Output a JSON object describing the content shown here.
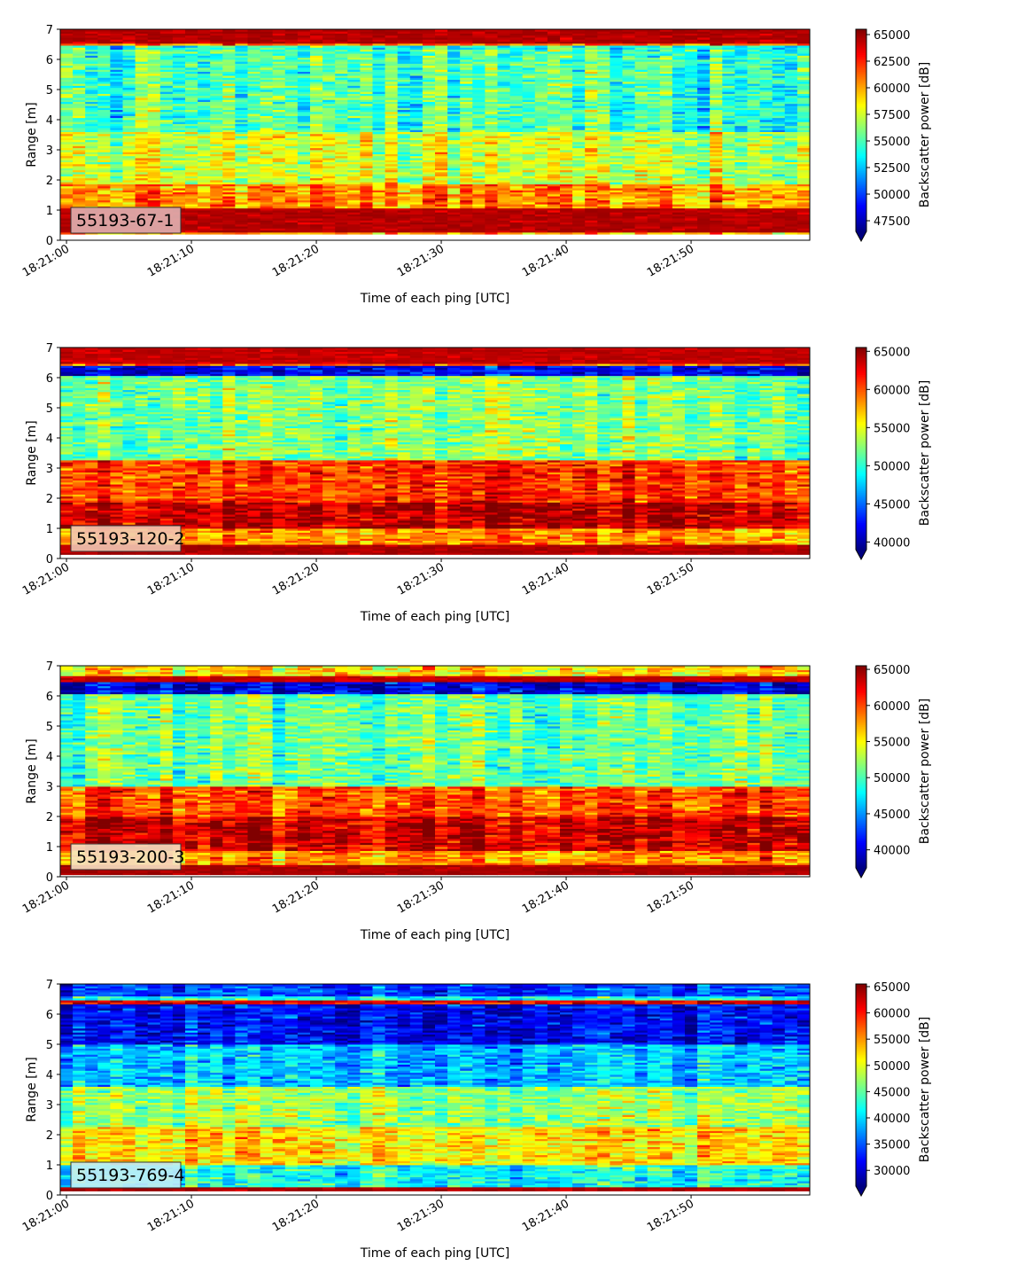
{
  "chart_data": [
    {
      "type": "heatmap",
      "title": "",
      "label_box": "55193-67-1",
      "xlabel": "Time of each ping [UTC]",
      "ylabel": "Range [m]",
      "x_ticks": [
        "18:21:00",
        "18:21:10",
        "18:21:20",
        "18:21:30",
        "18:21:40",
        "18:21:50"
      ],
      "x_range": [
        "18:20:59.5",
        "18:21:59.5"
      ],
      "y_ticks": [
        0,
        1,
        2,
        3,
        4,
        5,
        6,
        7
      ],
      "ylim": [
        0,
        7
      ],
      "colorbar": {
        "label": "Backscatter power [dB]",
        "colormap": "jet",
        "vmin": 46500,
        "vmax": 65500,
        "extend": "min",
        "ticks": [
          47500,
          50000,
          52500,
          55000,
          57500,
          60000,
          62500,
          65000
        ]
      },
      "label_box_color": "#e0b1b1",
      "bands": [
        {
          "from": 0,
          "to": 0.22,
          "value": null
        },
        {
          "from": 0.22,
          "to": 0.3,
          "value": 60000
        },
        {
          "from": 0.3,
          "to": 1.1,
          "value": 65000
        },
        {
          "from": 1.1,
          "to": 1.9,
          "value": 60500
        },
        {
          "from": 1.9,
          "to": 3.6,
          "value": 57500
        },
        {
          "from": 3.6,
          "to": 6.35,
          "value": 55000
        },
        {
          "from": 6.35,
          "to": 6.5,
          "value": 54000
        },
        {
          "from": 6.5,
          "to": 6.55,
          "value": 61000
        },
        {
          "from": 6.55,
          "to": 7.0,
          "value": 65000
        }
      ]
    },
    {
      "type": "heatmap",
      "title": "",
      "label_box": "55193-120-2",
      "xlabel": "Time of each ping [UTC]",
      "ylabel": "Range [m]",
      "x_ticks": [
        "18:21:00",
        "18:21:10",
        "18:21:20",
        "18:21:30",
        "18:21:40",
        "18:21:50"
      ],
      "x_range": [
        "18:20:59.5",
        "18:21:59.5"
      ],
      "y_ticks": [
        0,
        1,
        2,
        3,
        4,
        5,
        6,
        7
      ],
      "ylim": [
        0,
        7
      ],
      "colorbar": {
        "label": "Backscatter power [dB]",
        "colormap": "jet",
        "vmin": 39000,
        "vmax": 65500,
        "extend": "min",
        "ticks": [
          40000,
          45000,
          50000,
          55000,
          60000,
          65000
        ]
      },
      "label_box_color": "#f2c7b2",
      "bands": [
        {
          "from": 0,
          "to": 0.12,
          "value": null
        },
        {
          "from": 0.12,
          "to": 0.45,
          "value": 65000
        },
        {
          "from": 0.45,
          "to": 1.0,
          "value": 58500
        },
        {
          "from": 1.0,
          "to": 1.9,
          "value": 64000
        },
        {
          "from": 1.9,
          "to": 3.3,
          "value": 61000
        },
        {
          "from": 3.3,
          "to": 6.1,
          "value": 52500
        },
        {
          "from": 6.1,
          "to": 6.4,
          "value": 42000
        },
        {
          "from": 6.4,
          "to": 6.5,
          "value": 60000
        },
        {
          "from": 6.5,
          "to": 7.0,
          "value": 64500
        }
      ]
    },
    {
      "type": "heatmap",
      "title": "",
      "label_box": "55193-200-3",
      "xlabel": "Time of each ping [UTC]",
      "ylabel": "Range [m]",
      "x_ticks": [
        "18:21:00",
        "18:21:10",
        "18:21:20",
        "18:21:30",
        "18:21:40",
        "18:21:50"
      ],
      "x_range": [
        "18:20:59.5",
        "18:21:59.5"
      ],
      "y_ticks": [
        0,
        1,
        2,
        3,
        4,
        5,
        6,
        7
      ],
      "ylim": [
        0,
        7
      ],
      "colorbar": {
        "label": "Backscatter power [dB]",
        "colormap": "jet",
        "vmin": 37500,
        "vmax": 65500,
        "extend": "min",
        "ticks": [
          40000,
          45000,
          50000,
          55000,
          60000,
          65000
        ]
      },
      "label_box_color": "#f6e1c2",
      "bands": [
        {
          "from": 0,
          "to": 0.1,
          "value": null
        },
        {
          "from": 0.1,
          "to": 0.4,
          "value": 65000
        },
        {
          "from": 0.4,
          "to": 0.9,
          "value": 58000
        },
        {
          "from": 0.9,
          "to": 2.0,
          "value": 63500
        },
        {
          "from": 2.0,
          "to": 3.0,
          "value": 60000
        },
        {
          "from": 3.0,
          "to": 6.1,
          "value": 51000
        },
        {
          "from": 6.1,
          "to": 6.45,
          "value": 40000
        },
        {
          "from": 6.45,
          "to": 6.7,
          "value": 64500
        },
        {
          "from": 6.7,
          "to": 7.0,
          "value": 55500
        }
      ]
    },
    {
      "type": "heatmap",
      "title": "",
      "label_box": "55193-769-4",
      "xlabel": "Time of each ping [UTC]",
      "ylabel": "Range [m]",
      "x_ticks": [
        "18:21:00",
        "18:21:10",
        "18:21:20",
        "18:21:30",
        "18:21:40",
        "18:21:50"
      ],
      "x_range": [
        "18:20:59.5",
        "18:21:59.5"
      ],
      "y_ticks": [
        0,
        1,
        2,
        3,
        4,
        5,
        6,
        7
      ],
      "ylim": [
        0,
        7
      ],
      "colorbar": {
        "label": "Backscatter power [dB]",
        "colormap": "jet",
        "vmin": 27000,
        "vmax": 65500,
        "extend": "min",
        "ticks": [
          30000,
          35000,
          40000,
          45000,
          50000,
          55000,
          60000,
          65000
        ]
      },
      "label_box_color": "#c2ecf6",
      "bands": [
        {
          "from": 0,
          "to": 0.12,
          "value": null
        },
        {
          "from": 0.12,
          "to": 0.28,
          "value": 65000
        },
        {
          "from": 0.28,
          "to": 1.0,
          "value": 42000
        },
        {
          "from": 1.0,
          "to": 2.3,
          "value": 52000
        },
        {
          "from": 2.3,
          "to": 3.6,
          "value": 47000
        },
        {
          "from": 3.6,
          "to": 5.0,
          "value": 39000
        },
        {
          "from": 5.0,
          "to": 6.35,
          "value": 31500
        },
        {
          "from": 6.35,
          "to": 6.5,
          "value": 62000
        },
        {
          "from": 6.5,
          "to": 6.6,
          "value": 42000
        },
        {
          "from": 6.6,
          "to": 7.0,
          "value": 34000
        }
      ]
    }
  ]
}
